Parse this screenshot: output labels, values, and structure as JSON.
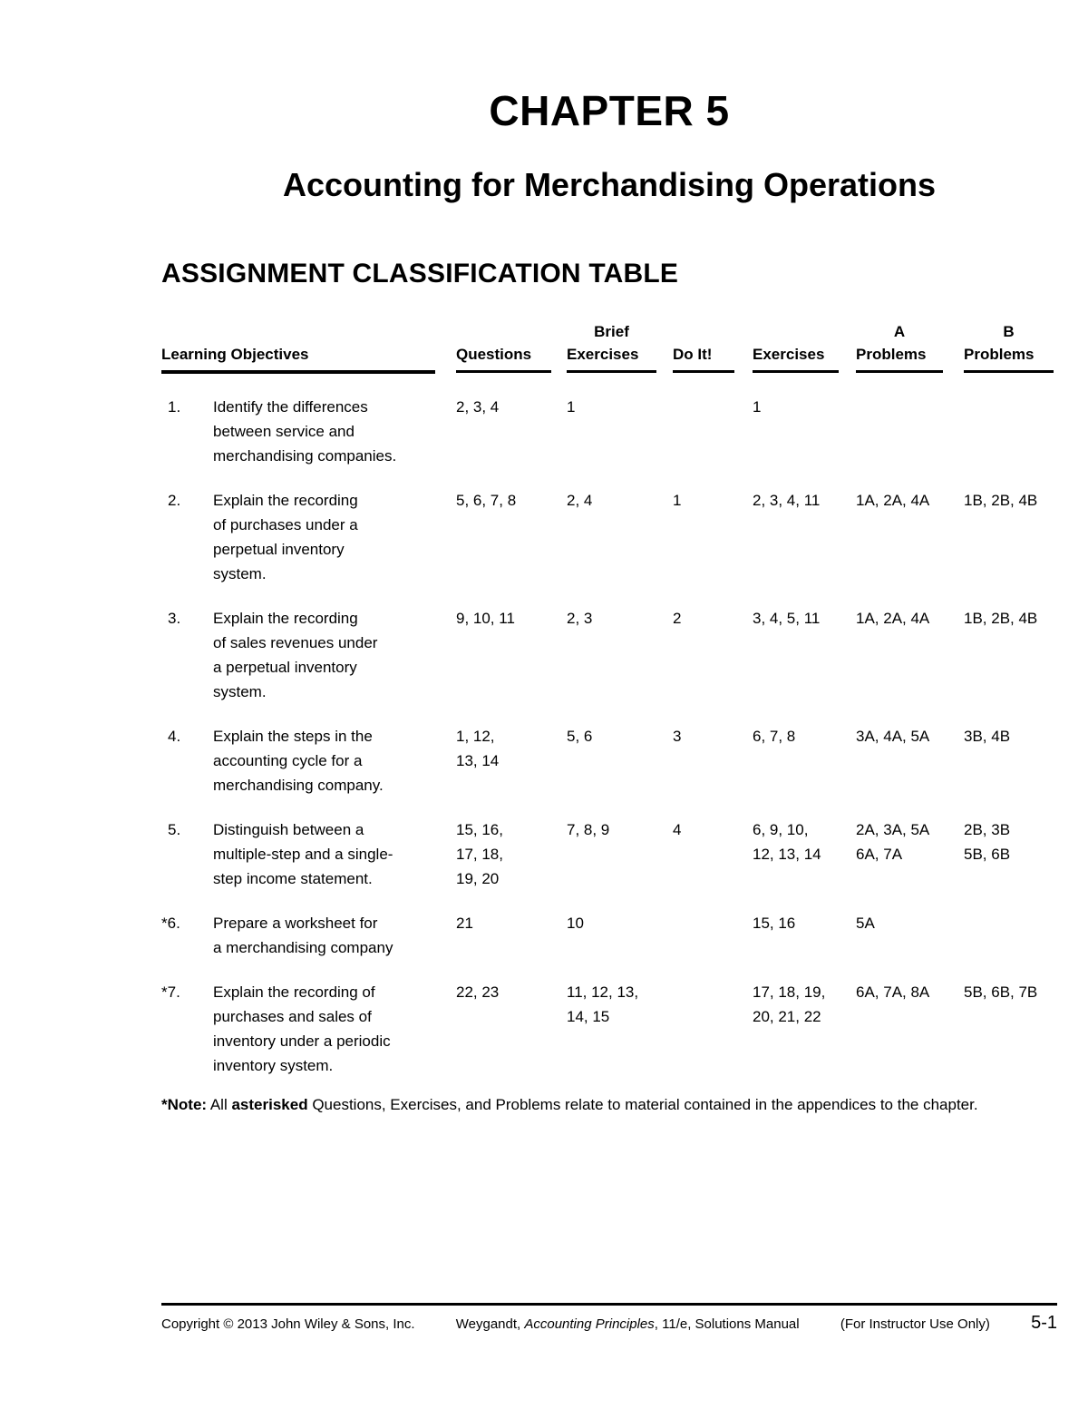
{
  "page": {
    "chapter_title": "CHAPTER 5",
    "subtitle": "Accounting for Merchandising Operations",
    "section_heading": "ASSIGNMENT CLASSIFICATION TABLE"
  },
  "table": {
    "headers": {
      "learning_objectives": "Learning Objectives",
      "questions": "Questions",
      "brief_exercises_top": "Brief",
      "brief_exercises": "Exercises",
      "do_it": "Do It!",
      "exercises": "Exercises",
      "a_problems_top": "A",
      "a_problems": "Problems",
      "b_problems_top": "B",
      "b_problems": "Problems"
    },
    "rows": [
      {
        "num": "1.",
        "objective": "Identify the differences\nbetween service and\nmerchandising companies.",
        "questions": "2, 3, 4",
        "brief_exercises": "1",
        "do_it": "",
        "exercises": "1",
        "a_problems": "",
        "b_problems": ""
      },
      {
        "num": "2.",
        "objective": "Explain the recording\nof purchases under a\nperpetual inventory\nsystem.",
        "questions": "5, 6, 7, 8",
        "brief_exercises": "2, 4",
        "do_it": "1",
        "exercises": "2, 3, 4, 11",
        "a_problems": "1A, 2A, 4A",
        "b_problems": "1B, 2B, 4B"
      },
      {
        "num": "3.",
        "objective": "Explain the recording\nof sales revenues under\na perpetual inventory\nsystem.",
        "questions": "9, 10, 11",
        "brief_exercises": "2, 3",
        "do_it": "2",
        "exercises": "3, 4, 5, 11",
        "a_problems": "1A, 2A, 4A",
        "b_problems": "1B, 2B, 4B"
      },
      {
        "num": "4.",
        "objective": "Explain the steps in the\naccounting cycle for a\nmerchandising company.",
        "questions": "1, 12,\n13, 14",
        "brief_exercises": "5, 6",
        "do_it": "3",
        "exercises": "6, 7, 8",
        "a_problems": "3A, 4A, 5A",
        "b_problems": "3B, 4B"
      },
      {
        "num": "5.",
        "objective": "Distinguish between a\nmultiple-step and a single-\nstep income statement.",
        "questions": "15, 16,\n17, 18,\n19, 20",
        "brief_exercises": "7, 8, 9",
        "do_it": "4",
        "exercises": "6, 9, 10,\n12, 13, 14",
        "a_problems": "2A, 3A, 5A\n6A, 7A",
        "b_problems": "2B, 3B\n5B, 6B"
      },
      {
        "num": "*6.",
        "objective": "Prepare a worksheet for\na merchandising company",
        "questions": "21",
        "brief_exercises": "10",
        "do_it": "",
        "exercises": "15, 16",
        "a_problems": "5A",
        "b_problems": ""
      },
      {
        "num": "*7.",
        "objective": "Explain the recording of\npurchases and sales of\ninventory under a periodic\ninventory system.",
        "questions": "22, 23",
        "brief_exercises": "11, 12, 13,\n14, 15",
        "do_it": "",
        "exercises": "17, 18, 19,\n20, 21, 22",
        "a_problems": "6A, 7A, 8A",
        "b_problems": "5B, 6B, 7B"
      }
    ]
  },
  "note": {
    "label": "*Note:",
    "text_before_bold": " All ",
    "bold_word": "asterisked",
    "text_after_bold": " Questions, Exercises, and Problems relate to material contained in the appendices to the chapter."
  },
  "footer": {
    "copyright": "Copyright © 2013 John Wiley & Sons, Inc.",
    "author_prefix": "Weygandt, ",
    "book_title": "Accounting Principles",
    "edition_suffix": ", 11/e, Solutions Manual",
    "instructor_note": "(For Instructor Use Only)",
    "page_number": "5-1"
  }
}
